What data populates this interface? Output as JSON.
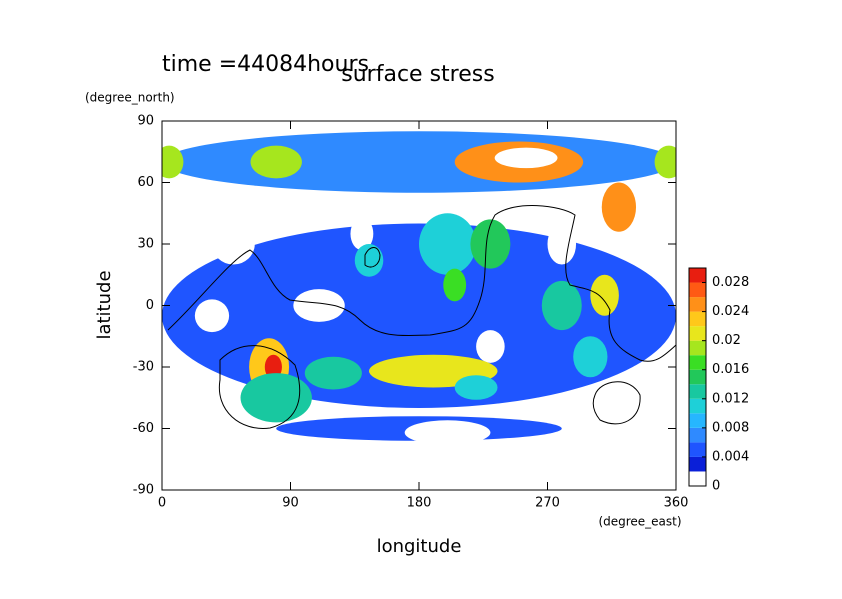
{
  "chart_data": {
    "type": "contour",
    "title": "surface stress",
    "subtitle": "time =44084hours",
    "x_label": "longitude",
    "x_unit": "(degree_east)",
    "y_label": "latitude",
    "y_unit": "(degree_north)",
    "xlim": [
      0,
      360
    ],
    "ylim": [
      -90,
      90
    ],
    "xticks": [
      0,
      90,
      180,
      270,
      360
    ],
    "yticks": [
      -90,
      -60,
      -30,
      0,
      30,
      60,
      90
    ],
    "colorbar": {
      "lim": [
        0,
        0.03
      ],
      "ticks": [
        0,
        0.004,
        0.008,
        0.012,
        0.016,
        0.02,
        0.024,
        0.028
      ],
      "levels": [
        0,
        0.002,
        0.004,
        0.006,
        0.008,
        0.01,
        0.012,
        0.014,
        0.016,
        0.018,
        0.02,
        0.022,
        0.024,
        0.026,
        0.028,
        0.03
      ],
      "colors": [
        "#ffffff",
        "#0a1fd8",
        "#1f55ff",
        "#2f8aff",
        "#26b6ff",
        "#1ed0d8",
        "#18c8a0",
        "#22c85a",
        "#3ade24",
        "#a6e61e",
        "#e8e61c",
        "#ffc81a",
        "#ff9018",
        "#ff5a14",
        "#e81e10"
      ]
    },
    "regions": {
      "x": [
        180,
        180,
        180,
        50,
        35,
        110,
        230,
        280,
        140,
        330,
        200,
        80,
        5,
        355,
        250,
        255,
        320,
        75,
        78,
        190,
        200,
        310,
        230,
        205,
        280,
        145,
        80,
        300,
        120,
        220
      ],
      "y": [
        70,
        -5,
        -60,
        30,
        -5,
        0,
        -20,
        30,
        35,
        -50,
        -62,
        70,
        70,
        70,
        70,
        72,
        48,
        -30,
        -30,
        -32,
        30,
        5,
        30,
        10,
        0,
        22,
        -45,
        -25,
        -33,
        -40
      ],
      "rx": [
        180,
        180,
        100,
        15,
        12,
        18,
        10,
        10,
        8,
        15,
        30,
        18,
        10,
        10,
        45,
        22,
        12,
        14,
        6,
        45,
        20,
        10,
        14,
        8,
        14,
        10,
        25,
        12,
        20,
        15
      ],
      "ry": [
        15,
        45,
        6,
        10,
        8,
        8,
        8,
        10,
        8,
        8,
        6,
        8,
        8,
        8,
        10,
        5,
        12,
        14,
        6,
        8,
        15,
        10,
        12,
        8,
        12,
        8,
        12,
        10,
        8,
        6
      ],
      "level": [
        0.006,
        0.004,
        0.004,
        0,
        0,
        0,
        0,
        0,
        0,
        0,
        0,
        0.018,
        0.018,
        0.018,
        0.024,
        0,
        0.024,
        0.022,
        0.028,
        0.02,
        0.01,
        0.02,
        0.014,
        0.016,
        0.012,
        0.01,
        0.012,
        0.01,
        0.012,
        0.01
      ]
    }
  }
}
